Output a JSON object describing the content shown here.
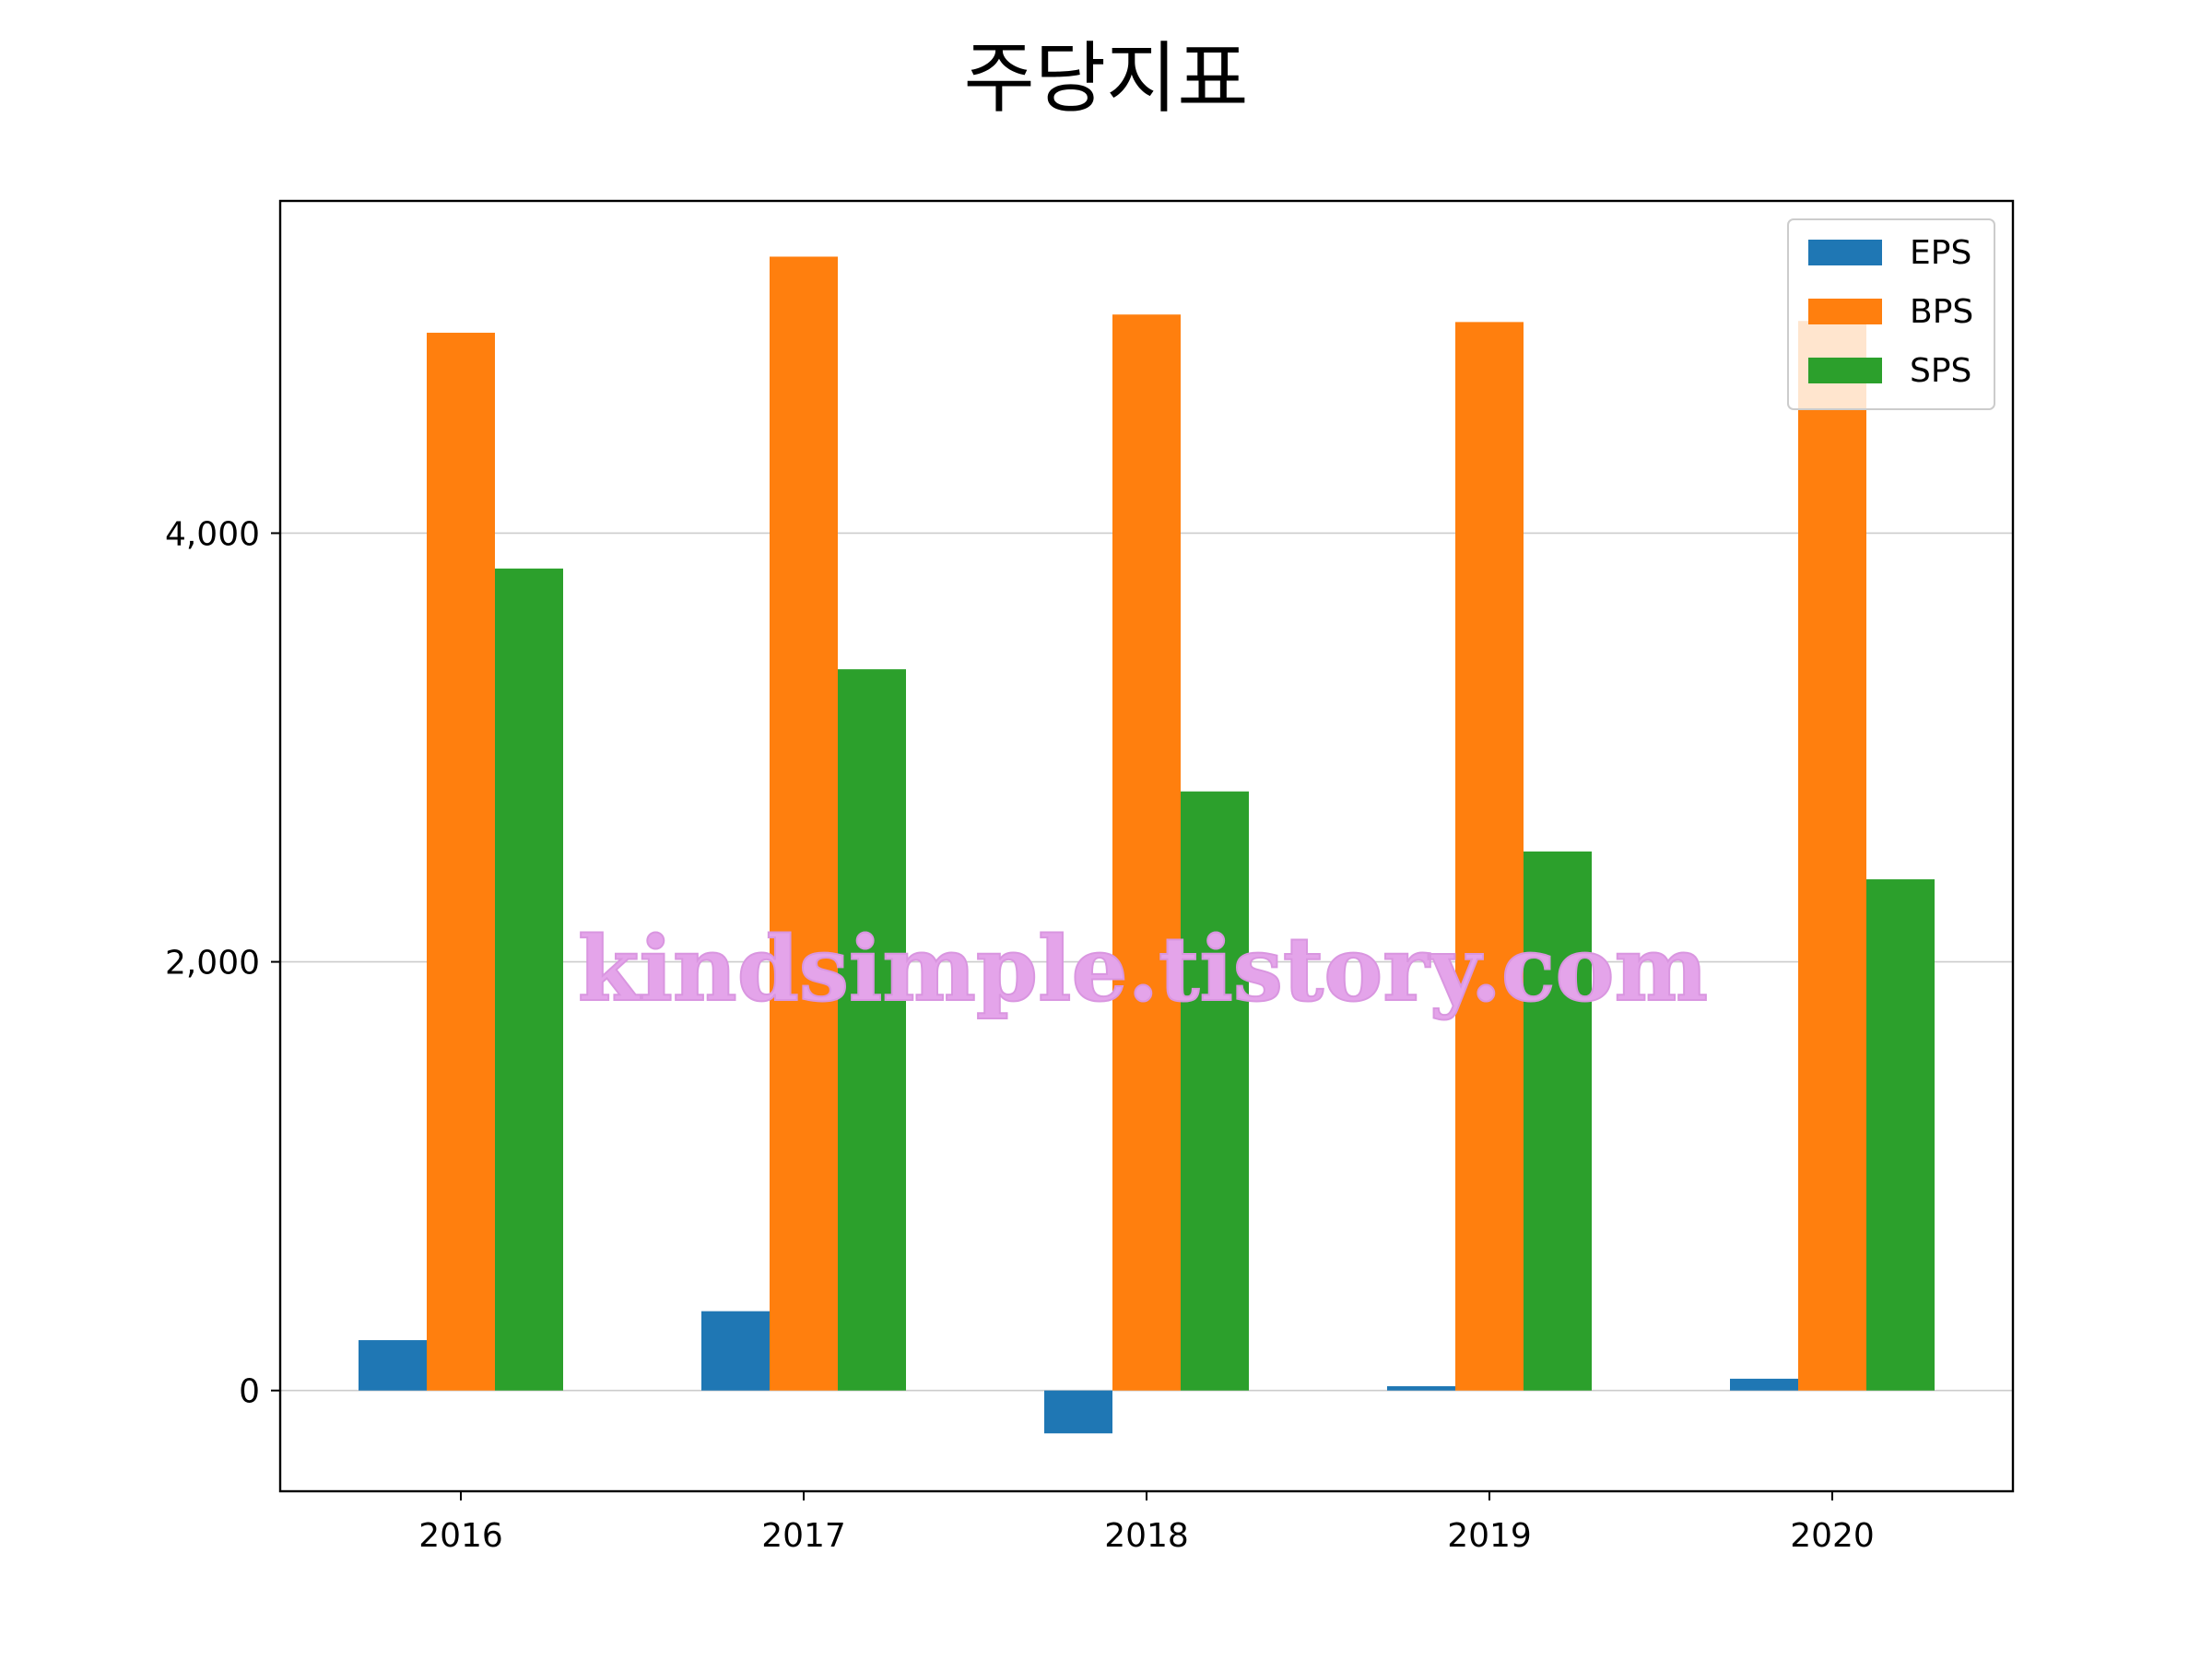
{
  "chart_data": {
    "type": "bar",
    "title": "주당지표",
    "xlabel": "",
    "ylabel": "",
    "categories": [
      "2016",
      "2017",
      "2018",
      "2019",
      "2020"
    ],
    "series": [
      {
        "name": "EPS",
        "color": "#1f77b4",
        "values": [
          235,
          370,
          -200,
          20,
          55
        ]
      },
      {
        "name": "BPS",
        "color": "#ff7f0e",
        "values": [
          4935,
          5290,
          5020,
          4985,
          4990
        ]
      },
      {
        "name": "SPS",
        "color": "#2ca02c",
        "values": [
          3835,
          3365,
          2795,
          2515,
          2385
        ]
      }
    ],
    "ylim": [
      -470,
      5550
    ],
    "yticks": [
      0,
      2000,
      4000
    ],
    "ytick_labels": [
      "0",
      "2,000",
      "4,000"
    ],
    "grid": "horizontal",
    "legend_position": "top-right"
  },
  "watermark": "kindsimple.tistory.com"
}
